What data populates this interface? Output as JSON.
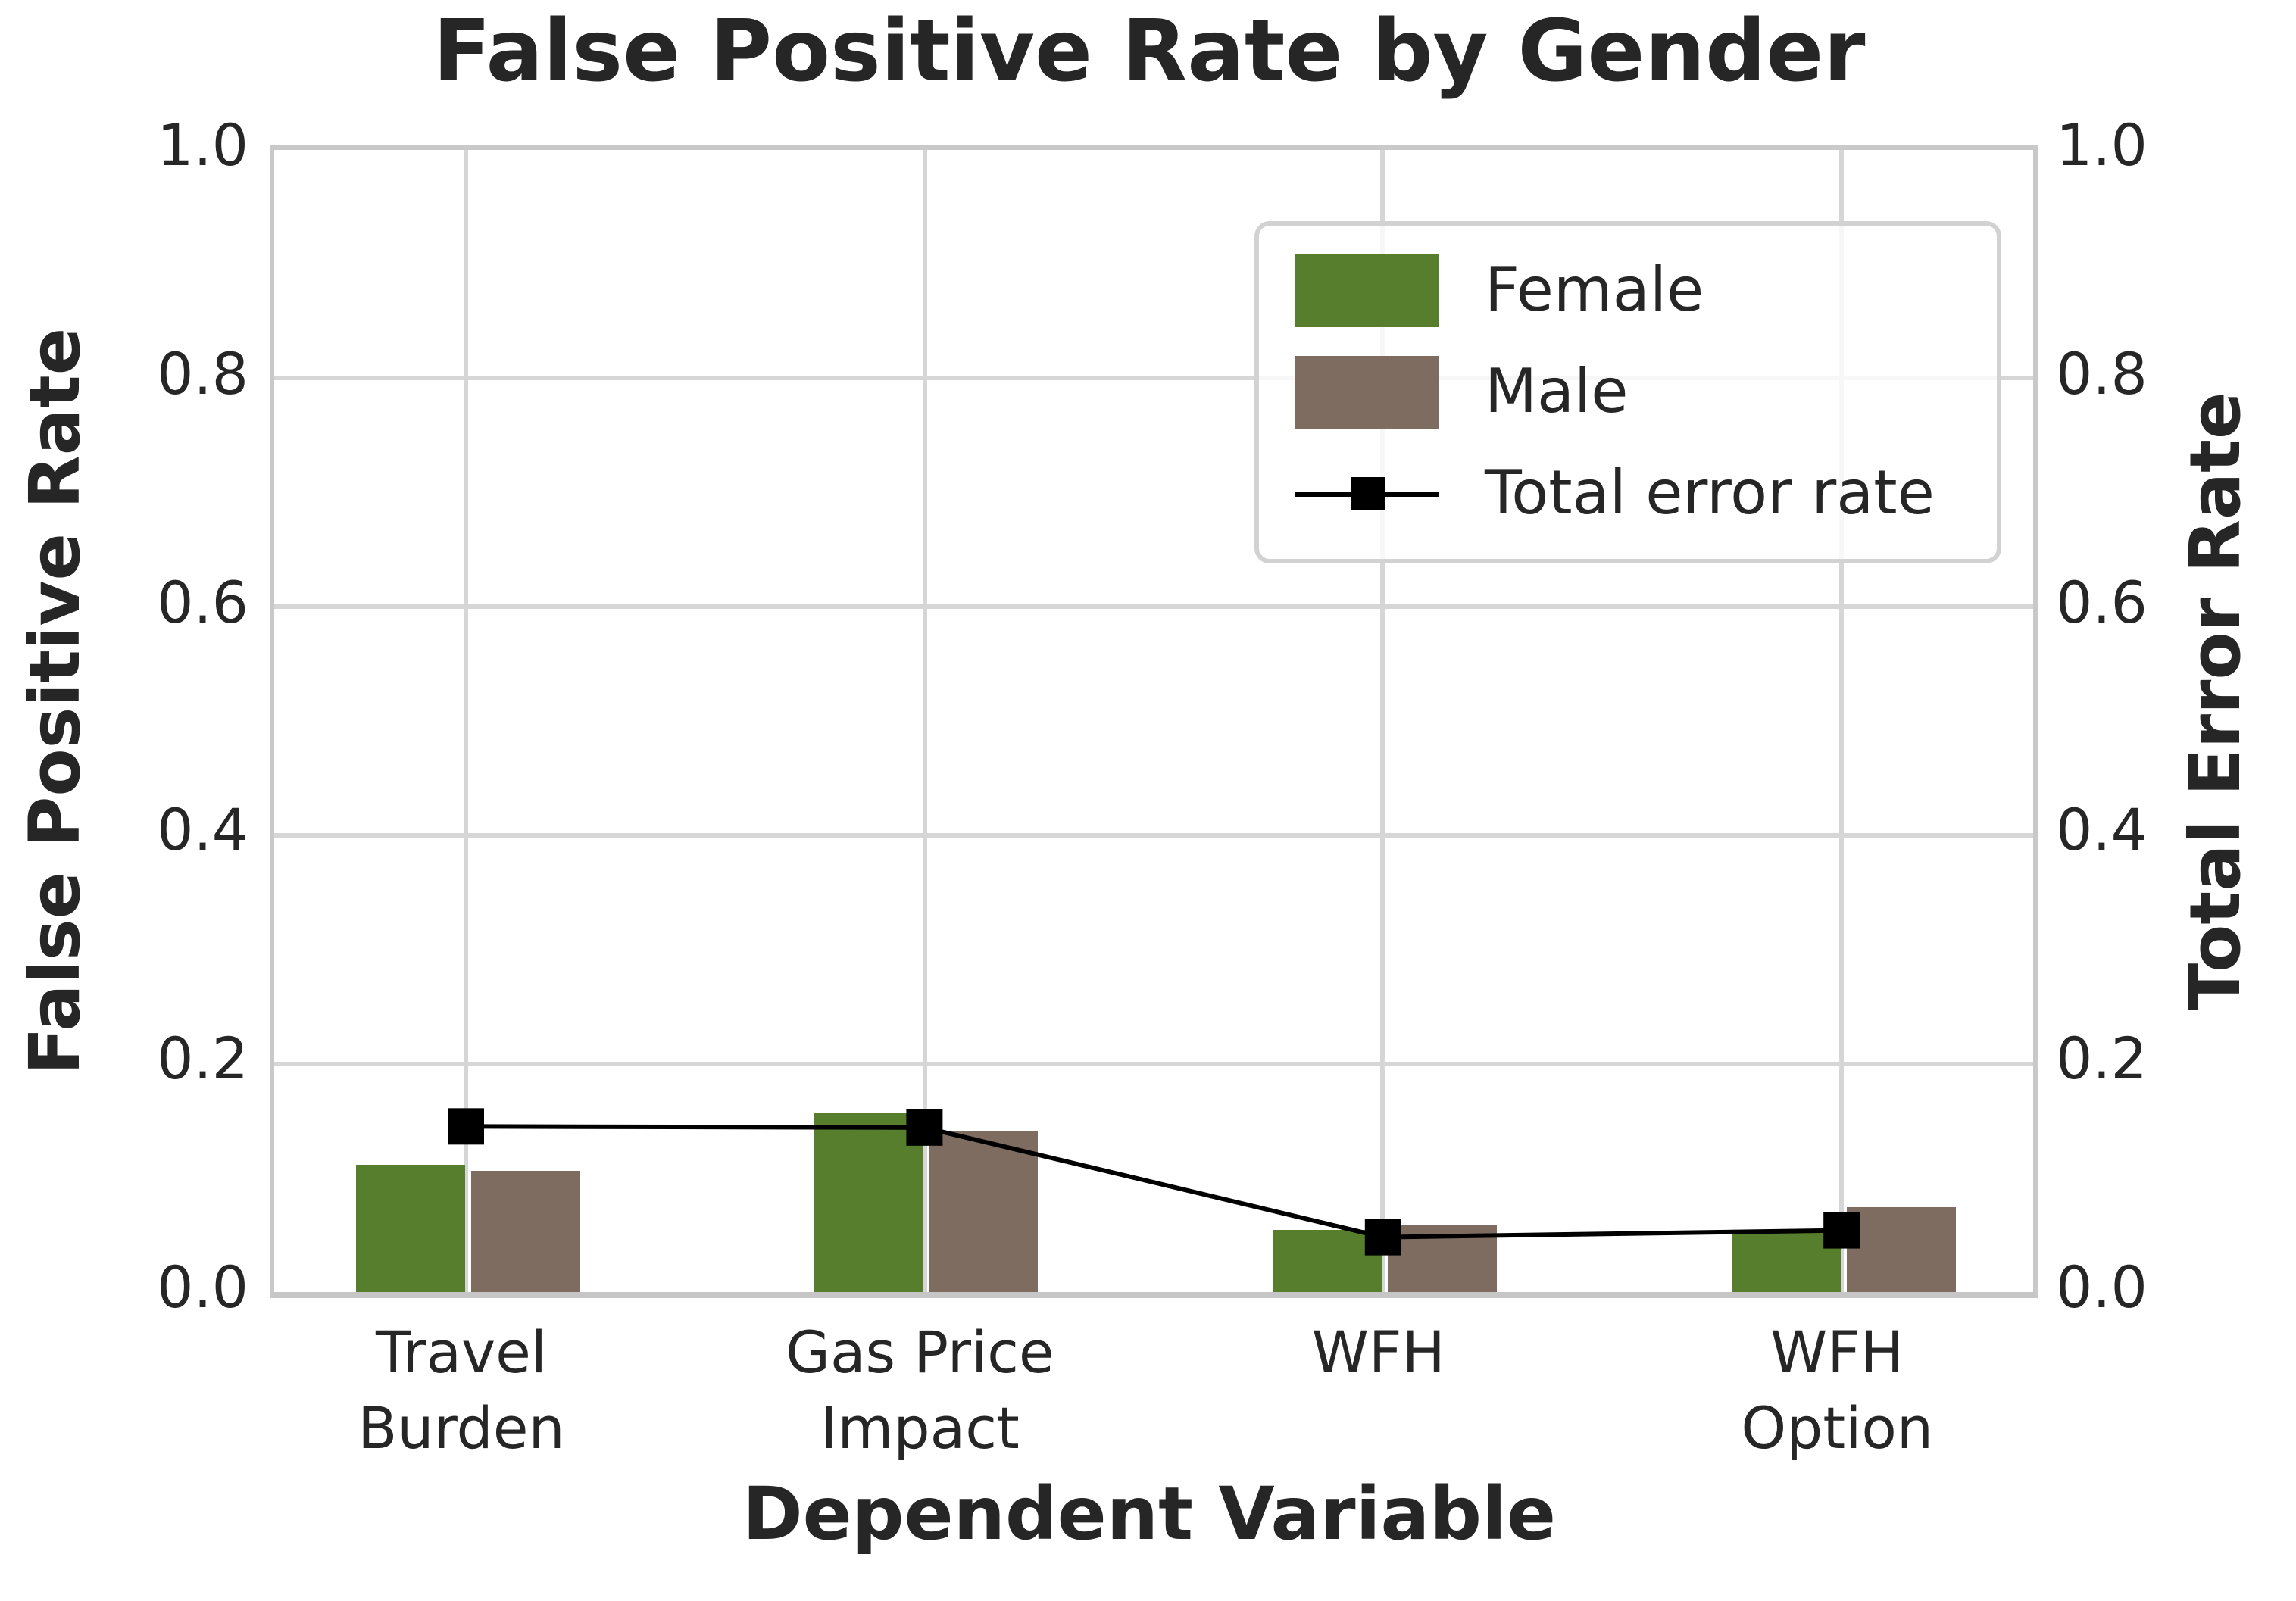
{
  "chart_data": {
    "type": "bar",
    "title": "False Positive Rate by Gender",
    "xlabel": "Dependent Variable",
    "ylabel_left": "False Positive Rate",
    "ylabel_right": "Total Error Rate",
    "categories": [
      "Travel\nBurden",
      "Gas Price\nImpact",
      "WFH",
      "WFH\nOption"
    ],
    "series": [
      {
        "name": "Female",
        "color": "#567e2d",
        "values": [
          0.111,
          0.157,
          0.055,
          0.052
        ]
      },
      {
        "name": "Male",
        "color": "#7d6c5f",
        "values": [
          0.106,
          0.14,
          0.058,
          0.074
        ]
      }
    ],
    "line_series": {
      "name": "Total error rate",
      "color": "#000000",
      "values": [
        0.145,
        0.144,
        0.048,
        0.054
      ]
    },
    "ylim": [
      0,
      1
    ],
    "yticks_left": [
      "0.0",
      "0.2",
      "0.4",
      "0.6",
      "0.8",
      "1.0"
    ],
    "yticks_right": [
      "0.0",
      "0.2",
      "0.4",
      "0.6",
      "0.8",
      "1.0"
    ],
    "grid": true,
    "legend_position": "upper right",
    "colors": {
      "grid": "#d6d6d6",
      "spine": "#c9c9c9",
      "text": "#262626"
    }
  }
}
